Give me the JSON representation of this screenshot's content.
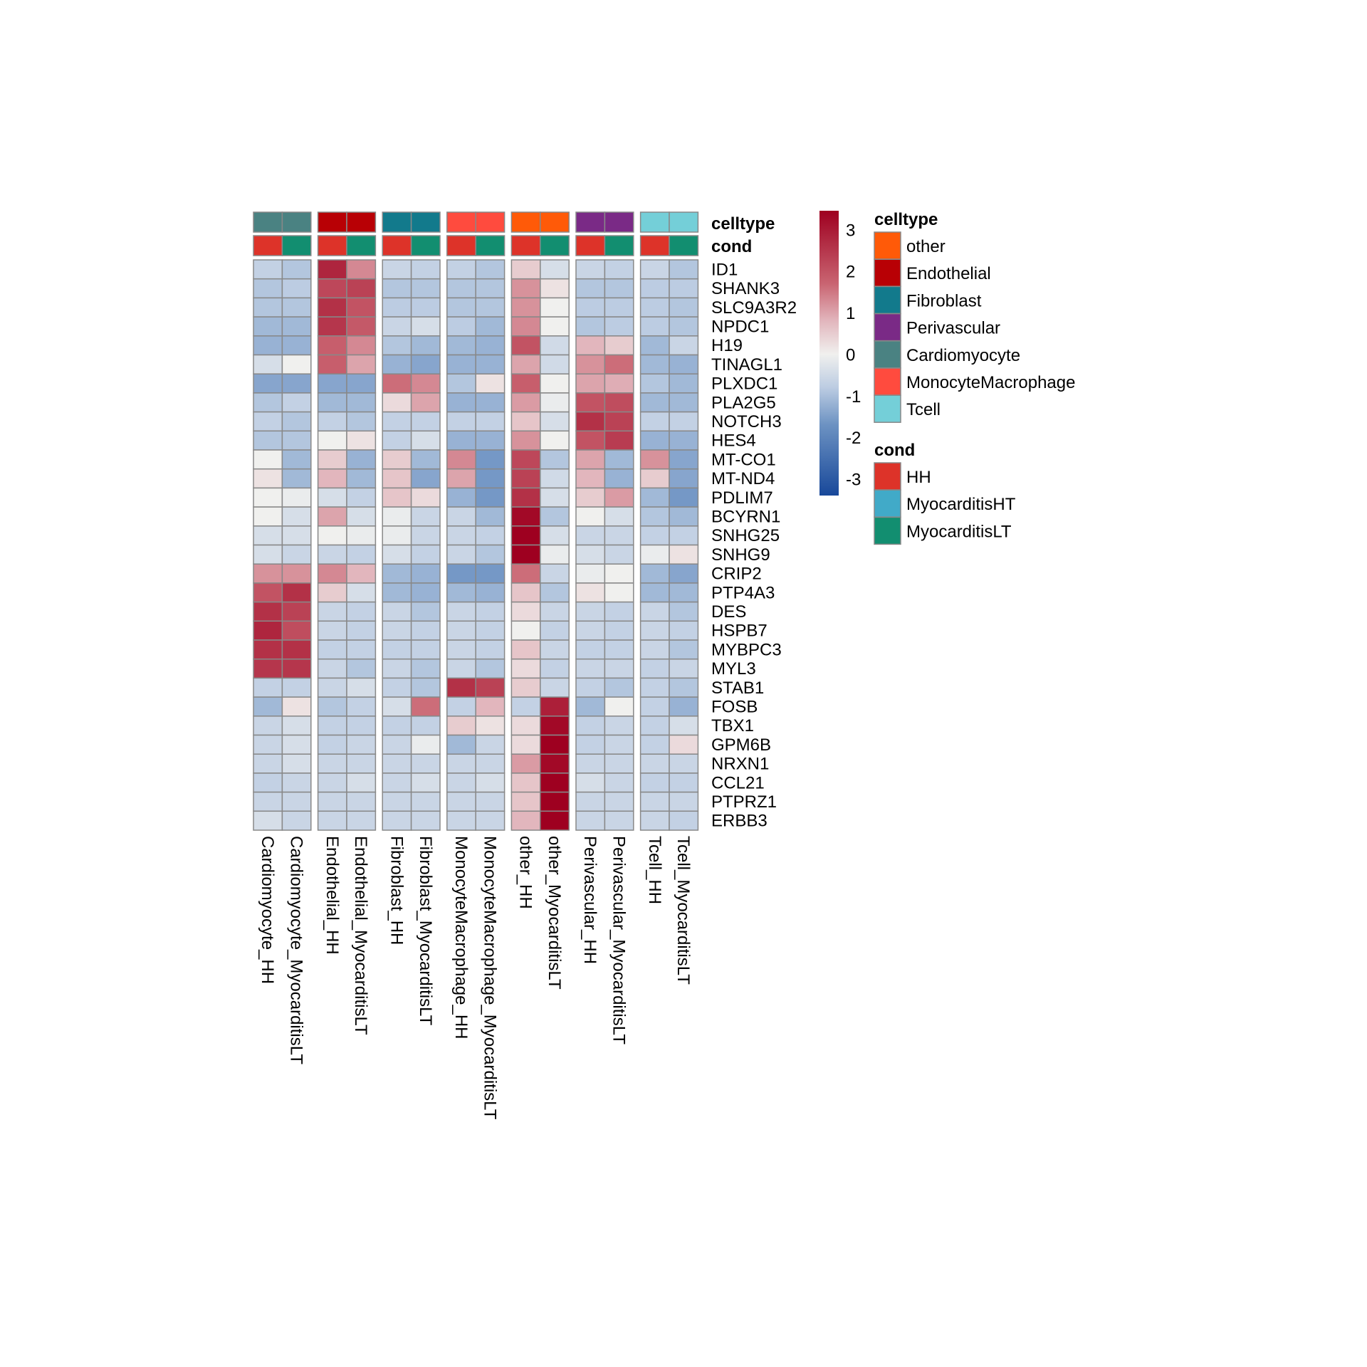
{
  "chart_data": {
    "type": "heatmap",
    "title": "",
    "columns": [
      "Cardiomyocyte_HH",
      "Cardiomyocyte_MyocarditisLT",
      "Endothelial_HH",
      "Endothelial_MyocarditisLT",
      "Fibroblast_HH",
      "Fibroblast_MyocarditisLT",
      "MonocyteMacrophage_HH",
      "MonocyteMacrophage_MyocarditisLT",
      "other_HH",
      "other_MyocarditisLT",
      "Perivascular_HH",
      "Perivascular_MyocarditisLT",
      "Tcell_HH",
      "Tcell_MyocarditisLT"
    ],
    "column_celltype": [
      "Cardiomyocyte",
      "Cardiomyocyte",
      "Endothelial",
      "Endothelial",
      "Fibroblast",
      "Fibroblast",
      "MonocyteMacrophage",
      "MonocyteMacrophage",
      "other",
      "other",
      "Perivascular",
      "Perivascular",
      "Tcell",
      "Tcell"
    ],
    "column_cond": [
      "HH",
      "MyocarditisLT",
      "HH",
      "MyocarditisLT",
      "HH",
      "MyocarditisLT",
      "HH",
      "MyocarditisLT",
      "HH",
      "MyocarditisLT",
      "HH",
      "MyocarditisLT",
      "HH",
      "MyocarditisLT"
    ],
    "rows": [
      "ID1",
      "SHANK3",
      "SLC9A3R2",
      "NPDC1",
      "H19",
      "TINAGL1",
      "PLXDC1",
      "PLA2G5",
      "NOTCH3",
      "HES4",
      "MT-CO1",
      "MT-ND4",
      "PDLIM7",
      "BCYRN1",
      "SNHG25",
      "SNHG9",
      "CRIP2",
      "PTP4A3",
      "DES",
      "HSPB7",
      "MYBPC3",
      "MYL3",
      "STAB1",
      "FOSB",
      "TBX1",
      "GPM6B",
      "NRXN1",
      "CCL21",
      "PTPRZ1",
      "ERBB3"
    ],
    "values": [
      [
        -0.7,
        -0.9,
        2.8,
        1.3,
        -0.6,
        -0.7,
        -0.7,
        -0.9,
        0.5,
        -0.4,
        -0.6,
        -0.7,
        -0.6,
        -0.9
      ],
      [
        -0.9,
        -0.8,
        2.2,
        2.3,
        -0.9,
        -0.9,
        -0.9,
        -0.9,
        1.2,
        0.2,
        -0.9,
        -0.9,
        -0.8,
        -0.8
      ],
      [
        -0.9,
        -0.9,
        2.6,
        2.0,
        -0.8,
        -0.8,
        -0.9,
        -0.9,
        1.2,
        0.0,
        -0.8,
        -0.8,
        -0.8,
        -0.9
      ],
      [
        -1.1,
        -1.1,
        2.5,
        1.9,
        -0.6,
        -0.4,
        -0.8,
        -1.1,
        1.3,
        0.0,
        -0.9,
        -0.8,
        -0.8,
        -0.9
      ],
      [
        -1.2,
        -1.2,
        1.8,
        1.3,
        -0.9,
        -1.1,
        -1.1,
        -1.2,
        2.0,
        -0.5,
        0.8,
        0.5,
        -1.1,
        -0.6
      ],
      [
        -0.4,
        0.0,
        1.8,
        1.0,
        -1.2,
        -1.4,
        -1.2,
        -1.2,
        1.0,
        -0.5,
        1.2,
        1.6,
        -1.1,
        -1.2
      ],
      [
        -1.4,
        -1.4,
        -1.4,
        -1.4,
        1.6,
        1.3,
        -0.9,
        0.2,
        1.8,
        0.0,
        1.0,
        0.9,
        -0.9,
        -1.1
      ],
      [
        -0.9,
        -0.7,
        -1.1,
        -1.1,
        0.3,
        1.0,
        -1.2,
        -1.2,
        1.1,
        -0.1,
        2.0,
        2.1,
        -1.1,
        -1.1
      ],
      [
        -0.7,
        -0.9,
        -0.7,
        -0.9,
        -0.7,
        -0.7,
        -0.7,
        -0.7,
        0.6,
        -0.4,
        2.6,
        2.3,
        -0.7,
        -0.7
      ],
      [
        -0.9,
        -0.9,
        0.0,
        0.2,
        -0.7,
        -0.4,
        -1.2,
        -1.2,
        1.2,
        0.0,
        2.0,
        2.4,
        -1.2,
        -1.2
      ],
      [
        0.0,
        -1.1,
        0.5,
        -1.2,
        0.5,
        -1.1,
        1.3,
        -1.6,
        2.2,
        -0.9,
        1.0,
        -1.1,
        1.2,
        -1.4
      ],
      [
        0.2,
        -1.1,
        0.8,
        -1.1,
        0.6,
        -1.4,
        1.0,
        -1.6,
        2.3,
        -0.5,
        0.8,
        -1.2,
        0.5,
        -1.4
      ],
      [
        0.0,
        -0.1,
        -0.4,
        -0.7,
        0.6,
        0.3,
        -1.2,
        -1.6,
        2.6,
        -0.4,
        0.5,
        1.1,
        -1.1,
        -1.6
      ],
      [
        0.0,
        -0.4,
        1.0,
        -0.4,
        -0.1,
        -0.6,
        -0.6,
        -1.1,
        3.3,
        -0.9,
        0.0,
        -0.4,
        -0.9,
        -1.1
      ],
      [
        -0.4,
        -0.4,
        0.0,
        -0.1,
        -0.1,
        -0.6,
        -0.6,
        -0.7,
        3.5,
        -0.4,
        -0.6,
        -0.6,
        -0.7,
        -0.7
      ],
      [
        -0.4,
        -0.6,
        -0.6,
        -0.7,
        -0.4,
        -0.7,
        -0.6,
        -0.9,
        3.5,
        -0.1,
        -0.4,
        -0.6,
        -0.1,
        0.2
      ],
      [
        1.2,
        1.2,
        1.3,
        0.8,
        -1.1,
        -1.2,
        -1.6,
        -1.6,
        1.6,
        -0.6,
        -0.1,
        0.0,
        -1.1,
        -1.4
      ],
      [
        2.0,
        2.6,
        0.5,
        -0.4,
        -1.1,
        -1.2,
        -1.1,
        -1.2,
        0.6,
        -0.9,
        0.2,
        0.0,
        -1.1,
        -1.1
      ],
      [
        2.6,
        2.3,
        -0.6,
        -0.7,
        -0.6,
        -0.9,
        -0.6,
        -0.7,
        0.3,
        -0.6,
        -0.6,
        -0.7,
        -0.6,
        -0.9
      ],
      [
        2.8,
        2.1,
        -0.6,
        -0.7,
        -0.6,
        -0.7,
        -0.6,
        -0.7,
        0.0,
        -0.7,
        -0.6,
        -0.7,
        -0.6,
        -0.7
      ],
      [
        2.6,
        2.6,
        -0.7,
        -0.7,
        -0.7,
        -0.7,
        -0.6,
        -0.7,
        0.6,
        -0.6,
        -0.7,
        -0.7,
        -0.6,
        -0.9
      ],
      [
        2.5,
        2.5,
        -0.6,
        -0.9,
        -0.6,
        -0.9,
        -0.6,
        -0.9,
        0.3,
        -0.7,
        -0.6,
        -0.6,
        -0.7,
        -0.6
      ],
      [
        -0.7,
        -0.7,
        -0.6,
        -0.4,
        -0.7,
        -0.9,
        2.6,
        2.3,
        0.5,
        -0.6,
        -0.7,
        -0.9,
        -0.7,
        -0.9
      ],
      [
        -1.1,
        0.2,
        -0.9,
        -0.7,
        -0.4,
        1.6,
        -0.7,
        0.8,
        -0.7,
        2.9,
        -1.1,
        0.0,
        -0.7,
        -1.2
      ],
      [
        -0.6,
        -0.4,
        -0.7,
        -0.7,
        -0.7,
        -0.7,
        0.5,
        0.2,
        0.3,
        3.3,
        -0.7,
        -0.6,
        -0.7,
        -0.4
      ],
      [
        -0.6,
        -0.4,
        -0.7,
        -0.6,
        -0.6,
        -0.1,
        -1.1,
        -0.6,
        0.3,
        3.5,
        -0.7,
        -0.6,
        -0.7,
        0.3
      ],
      [
        -0.6,
        -0.4,
        -0.6,
        -0.6,
        -0.6,
        -0.6,
        -0.6,
        -0.6,
        1.1,
        3.3,
        -0.6,
        -0.6,
        -0.6,
        -0.6
      ],
      [
        -0.7,
        -0.6,
        -0.6,
        -0.4,
        -0.6,
        -0.4,
        -0.6,
        -0.4,
        0.6,
        3.5,
        -0.4,
        -0.6,
        -0.7,
        -0.7
      ],
      [
        -0.6,
        -0.6,
        -0.6,
        -0.6,
        -0.6,
        -0.6,
        -0.6,
        -0.6,
        0.6,
        3.5,
        -0.6,
        -0.6,
        -0.6,
        -0.6
      ],
      [
        -0.4,
        -0.6,
        -0.6,
        -0.6,
        -0.6,
        -0.6,
        -0.6,
        -0.6,
        0.8,
        3.5,
        -0.6,
        -0.6,
        -0.6,
        -0.7
      ]
    ],
    "color_scale": {
      "range": [
        -3.4,
        3.45
      ],
      "stops": [
        [
          -3.4,
          "#18489a"
        ],
        [
          -1.7,
          "#6c92c2"
        ],
        [
          -0.8,
          "#bccce2"
        ],
        [
          0,
          "#f0f0ee"
        ],
        [
          0.8,
          "#e2b6bd"
        ],
        [
          1.7,
          "#c96471"
        ],
        [
          3.45,
          "#9e0020"
        ]
      ],
      "ticks": [
        "3",
        "2",
        "1",
        "0",
        "-1",
        "-2",
        "-3"
      ],
      "tick_values": [
        3,
        2,
        1,
        0,
        -1,
        -2,
        -3
      ]
    },
    "annotation_labels": {
      "celltype": "celltype",
      "cond": "cond"
    },
    "legend": {
      "celltype_title": "celltype",
      "celltype": [
        {
          "label": "other",
          "color": "#ff5a08"
        },
        {
          "label": "Endothelial",
          "color": "#b80005"
        },
        {
          "label": "Fibroblast",
          "color": "#127a8c"
        },
        {
          "label": "Perivascular",
          "color": "#7a2a86"
        },
        {
          "label": "Cardiomyocyte",
          "color": "#4a8282"
        },
        {
          "label": "MonocyteMacrophage",
          "color": "#ff4b3e"
        },
        {
          "label": "Tcell",
          "color": "#74cfd8"
        }
      ],
      "cond_title": "cond",
      "cond": [
        {
          "label": "HH",
          "color": "#dd3329"
        },
        {
          "label": "MyocarditisHT",
          "color": "#41aac8"
        },
        {
          "label": "MyocarditisLT",
          "color": "#128e70"
        }
      ]
    }
  }
}
